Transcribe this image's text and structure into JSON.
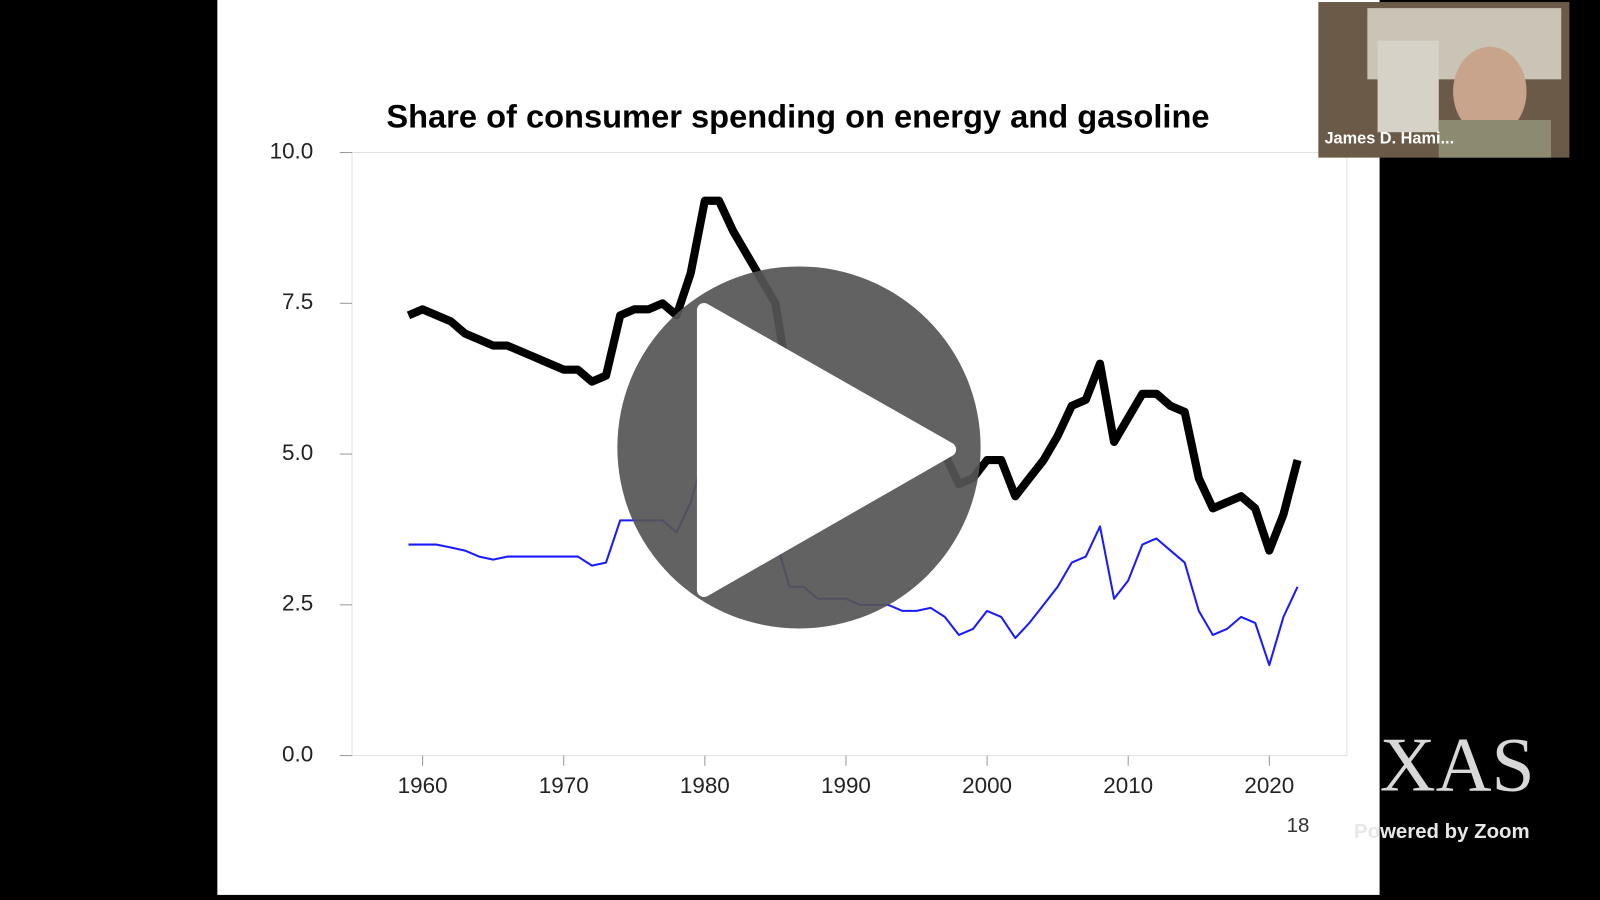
{
  "chart_data": {
    "type": "line",
    "title": "Share of consumer spending on energy and gasoline",
    "x": [
      1959,
      1960,
      1961,
      1962,
      1963,
      1964,
      1965,
      1966,
      1967,
      1968,
      1969,
      1970,
      1971,
      1972,
      1973,
      1974,
      1975,
      1976,
      1977,
      1978,
      1979,
      1980,
      1981,
      1982,
      1983,
      1984,
      1985,
      1986,
      1987,
      1988,
      1989,
      1990,
      1991,
      1992,
      1993,
      1994,
      1995,
      1996,
      1997,
      1998,
      1999,
      2000,
      2001,
      2002,
      2003,
      2004,
      2005,
      2006,
      2007,
      2008,
      2009,
      2010,
      2011,
      2012,
      2013,
      2014,
      2015,
      2016,
      2017,
      2018,
      2019,
      2020,
      2021,
      2022
    ],
    "series": [
      {
        "color": "#000000",
        "values": [
          7.3,
          7.4,
          7.3,
          7.2,
          7.0,
          6.9,
          6.8,
          6.8,
          6.7,
          6.6,
          6.5,
          6.4,
          6.4,
          6.2,
          6.3,
          7.3,
          7.4,
          7.4,
          7.5,
          7.3,
          8.0,
          9.2,
          9.2,
          8.7,
          8.3,
          7.9,
          7.5,
          6.1,
          6.0,
          5.8,
          5.8,
          5.8,
          5.6,
          5.4,
          5.3,
          5.2,
          5.1,
          5.1,
          5.0,
          4.5,
          4.6,
          4.9,
          4.9,
          4.3,
          4.6,
          4.9,
          5.3,
          5.8,
          5.9,
          6.5,
          5.2,
          5.6,
          6.0,
          6.0,
          5.8,
          5.7,
          4.6,
          4.1,
          4.2,
          4.3,
          4.1,
          3.4,
          4.0,
          4.9
        ]
      },
      {
        "color": "#1a1aff",
        "values": [
          3.5,
          3.5,
          3.5,
          3.45,
          3.4,
          3.3,
          3.25,
          3.3,
          3.3,
          3.3,
          3.3,
          3.3,
          3.3,
          3.15,
          3.2,
          3.9,
          3.9,
          3.9,
          3.9,
          3.7,
          4.2,
          5.0,
          4.9,
          4.4,
          4.0,
          3.8,
          3.6,
          2.8,
          2.8,
          2.6,
          2.6,
          2.6,
          2.5,
          2.5,
          2.5,
          2.4,
          2.4,
          2.45,
          2.3,
          2.0,
          2.1,
          2.4,
          2.3,
          1.95,
          2.2,
          2.5,
          2.8,
          3.2,
          3.3,
          3.8,
          2.6,
          2.9,
          3.5,
          3.6,
          3.4,
          3.2,
          2.4,
          2.0,
          2.1,
          2.3,
          2.2,
          1.5,
          2.3,
          2.8
        ]
      }
    ],
    "xlim": [
      1955,
      2025.5
    ],
    "xticks": [
      1960,
      1970,
      1980,
      1990,
      2000,
      2010,
      2020
    ],
    "ylim": [
      0,
      10
    ],
    "yticks": [
      {
        "value": 0,
        "label": "0.0"
      },
      {
        "value": 2.5,
        "label": "2.5"
      },
      {
        "value": 5,
        "label": "5.0"
      },
      {
        "value": 7.5,
        "label": "7.5"
      },
      {
        "value": 10,
        "label": "10.0"
      }
    ]
  },
  "slide_number": 18,
  "video_tile": {
    "participant": "James D. Hami..."
  },
  "watermark": "XAS",
  "footer": "Powered by Zoom"
}
